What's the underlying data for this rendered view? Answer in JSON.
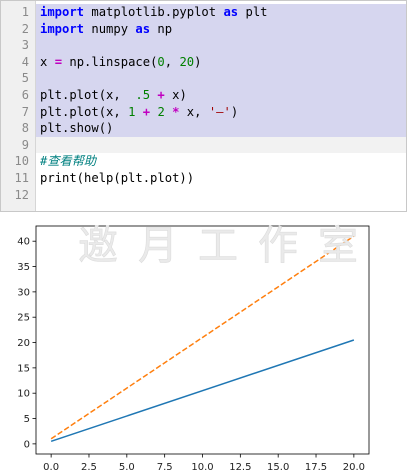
{
  "editor": {
    "lines": [
      {
        "n": "1",
        "selected": true,
        "tokens": [
          [
            "kw",
            "import"
          ],
          [
            "fn",
            " matplotlib.pyplot "
          ],
          [
            "kw",
            "as"
          ],
          [
            "fn",
            " plt"
          ]
        ]
      },
      {
        "n": "2",
        "selected": true,
        "tokens": [
          [
            "kw",
            "import"
          ],
          [
            "fn",
            " numpy "
          ],
          [
            "kw",
            "as"
          ],
          [
            "fn",
            " np"
          ]
        ]
      },
      {
        "n": "3",
        "selected": true,
        "tokens": []
      },
      {
        "n": "4",
        "selected": true,
        "tokens": [
          [
            "fn",
            "x "
          ],
          [
            "op",
            "="
          ],
          [
            "fn",
            " np.linspace("
          ],
          [
            "num",
            "0"
          ],
          [
            "fn",
            ", "
          ],
          [
            "num",
            "20"
          ],
          [
            "fn",
            ")"
          ]
        ]
      },
      {
        "n": "5",
        "selected": true,
        "tokens": []
      },
      {
        "n": "6",
        "selected": true,
        "tokens": [
          [
            "fn",
            "plt.plot(x,  "
          ],
          [
            "num",
            ".5"
          ],
          [
            "fn",
            " "
          ],
          [
            "op",
            "+"
          ],
          [
            "fn",
            " x)"
          ]
        ]
      },
      {
        "n": "7",
        "selected": true,
        "tokens": [
          [
            "fn",
            "plt.plot(x, "
          ],
          [
            "num",
            "1"
          ],
          [
            "fn",
            " "
          ],
          [
            "op",
            "+"
          ],
          [
            "fn",
            " "
          ],
          [
            "num",
            "2"
          ],
          [
            "fn",
            " "
          ],
          [
            "op",
            "*"
          ],
          [
            "fn",
            " x, "
          ],
          [
            "str",
            "'—'"
          ],
          [
            "fn",
            ")"
          ]
        ]
      },
      {
        "n": "8",
        "selected": true,
        "tokens": [
          [
            "fn",
            "plt.show()"
          ]
        ]
      },
      {
        "n": "9",
        "selected": false,
        "cursor": true,
        "tokens": []
      },
      {
        "n": "10",
        "selected": false,
        "tokens": [
          [
            "cmt",
            "#查看帮助"
          ]
        ]
      },
      {
        "n": "11",
        "selected": false,
        "tokens": [
          [
            "fn",
            "print(help(plt.plot))"
          ]
        ]
      },
      {
        "n": "12",
        "selected": false,
        "tokens": []
      }
    ]
  },
  "chart_data": {
    "type": "line",
    "title": "",
    "xlabel": "",
    "ylabel": "",
    "xlim": [
      -1,
      21
    ],
    "ylim": [
      -2.0,
      43.0
    ],
    "xticks": [
      "0.0",
      "2.5",
      "5.0",
      "7.5",
      "10.0",
      "12.5",
      "15.0",
      "17.5",
      "20.0"
    ],
    "xtick_values": [
      0,
      2.5,
      5,
      7.5,
      10,
      12.5,
      15,
      17.5,
      20
    ],
    "yticks": [
      "0",
      "5",
      "10",
      "15",
      "20",
      "25",
      "30",
      "35",
      "40"
    ],
    "ytick_values": [
      0,
      5,
      10,
      15,
      20,
      25,
      30,
      35,
      40
    ],
    "grid": false,
    "series": [
      {
        "color": "#1f77b4",
        "style": "solid",
        "x": [
          0,
          20
        ],
        "y": [
          0.5,
          20.5
        ]
      },
      {
        "color": "#ff7f0e",
        "style": "dashed",
        "x": [
          0,
          20
        ],
        "y": [
          1,
          41
        ]
      }
    ]
  },
  "watermark": {
    "text": "邀月工作室"
  }
}
